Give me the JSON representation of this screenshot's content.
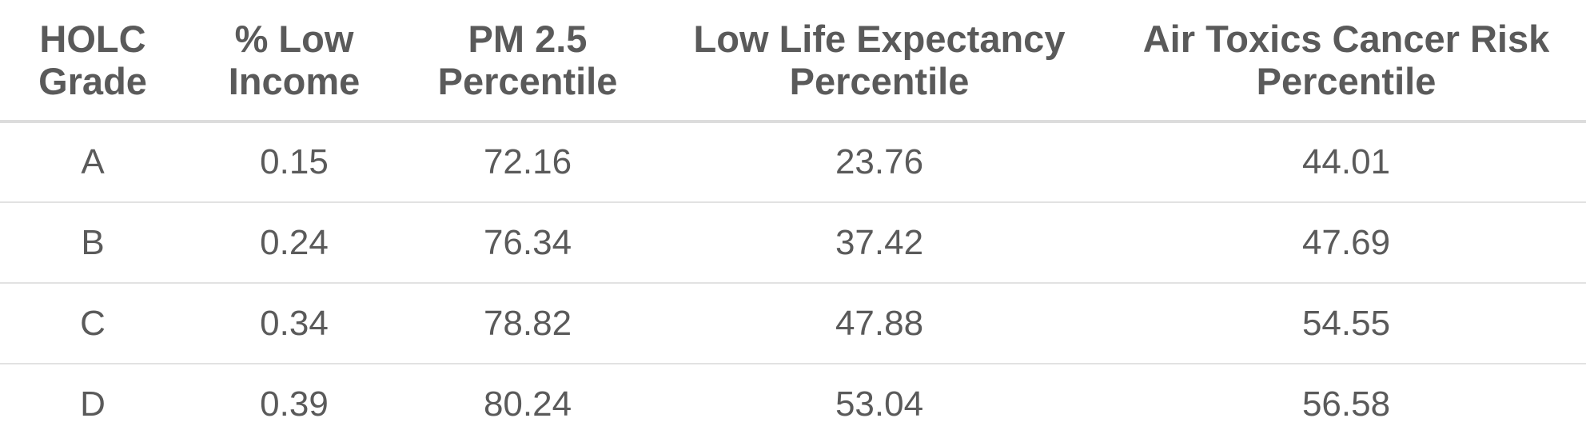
{
  "chart_data": {
    "type": "table",
    "columns": [
      "HOLC Grade",
      "% Low Income",
      "PM 2.5 Percentile",
      "Low Life Expectancy Percentile",
      "Air Toxics Cancer Risk Percentile"
    ],
    "rows": [
      [
        "A",
        "0.15",
        "72.16",
        "23.76",
        "44.01"
      ],
      [
        "B",
        "0.24",
        "76.34",
        "37.42",
        "47.69"
      ],
      [
        "C",
        "0.34",
        "78.82",
        "47.88",
        "54.55"
      ],
      [
        "D",
        "0.39",
        "80.24",
        "53.04",
        "56.58"
      ]
    ]
  },
  "colors": {
    "text": "#5a5a5a",
    "header_rule": "#dcdcdc",
    "row_rule": "#e2e2e2"
  }
}
